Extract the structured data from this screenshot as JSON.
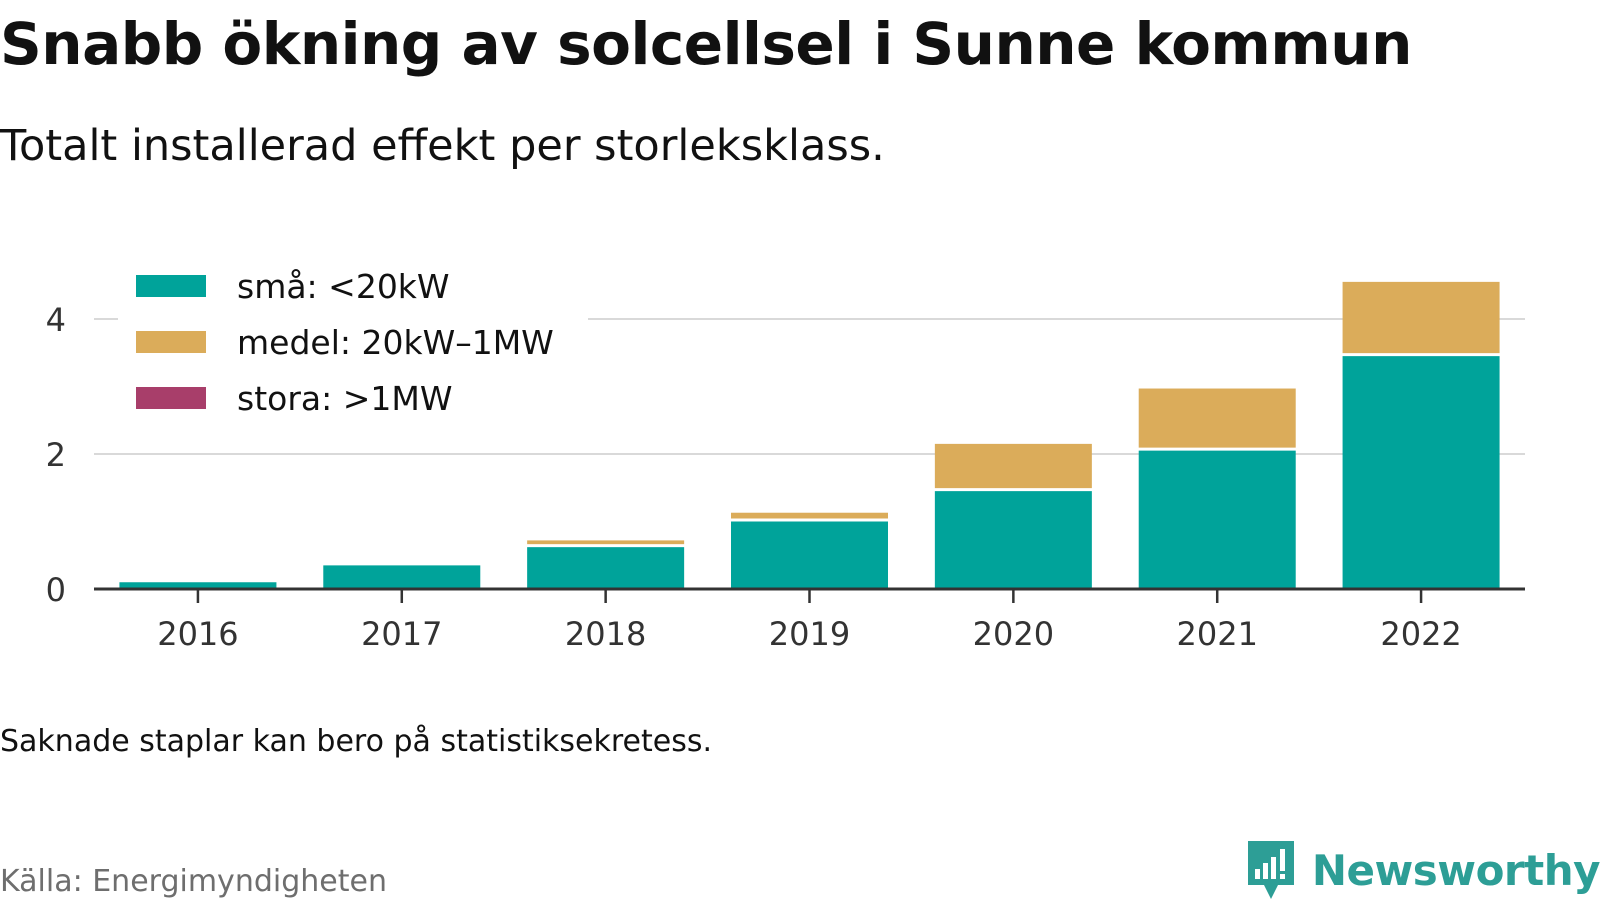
{
  "title": "Snabb ökning av solcellsel i Sunne kommun",
  "subtitle": "Totalt installerad effekt per storleksklass.",
  "footnote": "Saknade staplar kan bero på statistiksekretess.",
  "source": "Källa: Energimyndigheten",
  "brand": {
    "name": "Newsworthy",
    "icon": "bar-chart-speech-bubble-icon",
    "color": "#2d9e96"
  },
  "chart_data": {
    "type": "bar",
    "stacked": true,
    "categories": [
      "2016",
      "2017",
      "2018",
      "2019",
      "2020",
      "2021",
      "2022"
    ],
    "series": [
      {
        "name": "små: <20kW",
        "color": "#00a39a",
        "values": [
          0.1,
          0.35,
          0.62,
          1.0,
          1.45,
          2.05,
          3.45
        ]
      },
      {
        "name": "medel: 20kW–1MW",
        "color": "#dbac5a",
        "values": [
          0.0,
          0.0,
          0.1,
          0.13,
          0.7,
          0.92,
          1.1
        ]
      },
      {
        "name": "stora: >1MW",
        "color": "#a83e6a",
        "values": [
          0,
          0,
          0,
          0,
          0,
          0,
          0
        ]
      }
    ],
    "yticks": [
      "0",
      "2",
      "4"
    ],
    "ylim": [
      0,
      4.8
    ],
    "xlabel": "",
    "ylabel": "",
    "grid": true,
    "legend_position": "top-left"
  }
}
